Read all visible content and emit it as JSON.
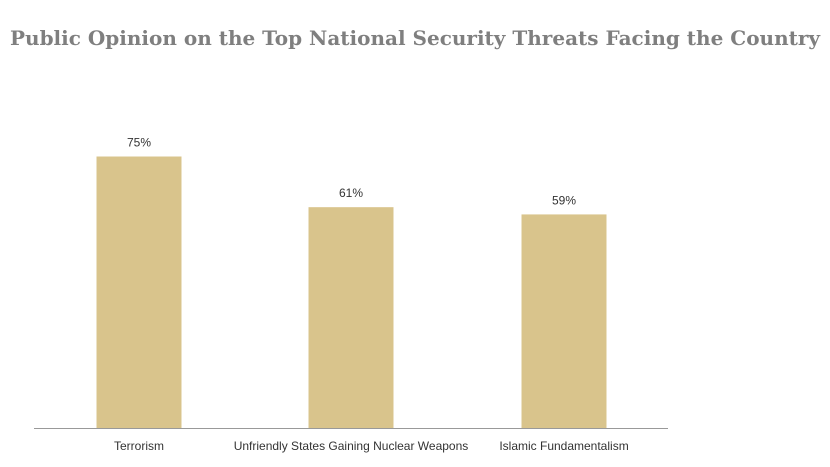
{
  "chart_data": {
    "type": "bar",
    "title": "Public Opinion on the Top National Security Threats Facing the Country",
    "categories": [
      "Terrorism",
      "Unfriendly States Gaining Nuclear Weapons",
      "Islamic Fundamentalism"
    ],
    "values": [
      75,
      61,
      59
    ],
    "value_labels": [
      "75%",
      "61%",
      "59%"
    ],
    "xlabel": "",
    "ylabel": "",
    "ylim": [
      0,
      100
    ],
    "grid": false,
    "legend": "none",
    "colors": {
      "bar": "#d9c48c",
      "axis": "#999999",
      "title": "#7f7f7f"
    }
  }
}
